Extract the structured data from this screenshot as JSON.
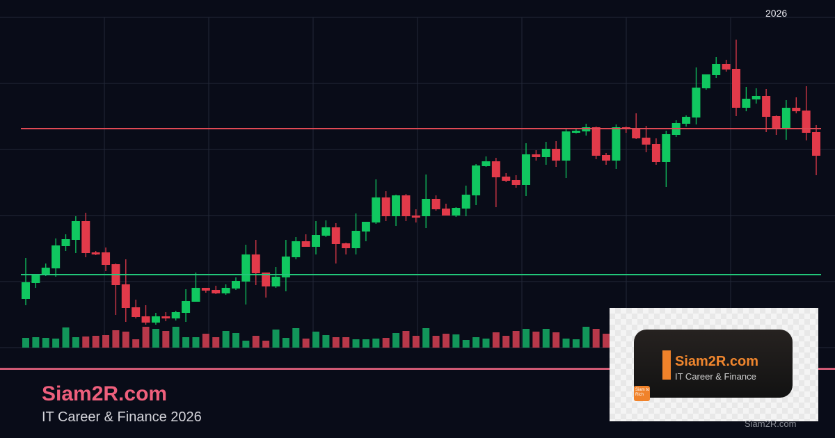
{
  "chart_data": {
    "type": "candlestick",
    "title": "",
    "annotation": "2026",
    "grid": true,
    "colors": {
      "background": "#090c18",
      "grid": "#232838",
      "up": "#10c760",
      "down": "#e23a4a",
      "volume_up": "#12965a",
      "volume_down": "#b8384a",
      "resistance": "#e04a55",
      "support": "#22c77a"
    },
    "levels": [
      {
        "kind": "resistance",
        "value": 345,
        "color": "#e04a55"
      },
      {
        "kind": "support",
        "value": 135,
        "color": "#22c77a"
      }
    ],
    "ohlc": [
      [
        100,
        159,
        91,
        124
      ],
      [
        123,
        135,
        116,
        135
      ],
      [
        135,
        151,
        133,
        145
      ],
      [
        144,
        187,
        132,
        177
      ],
      [
        176,
        193,
        169,
        186
      ],
      [
        185,
        219,
        166,
        212
      ],
      [
        212,
        224,
        160,
        166
      ],
      [
        167,
        169,
        163,
        164
      ],
      [
        167,
        174,
        140,
        149
      ],
      [
        150,
        151,
        77,
        120
      ],
      [
        121,
        157,
        67,
        87
      ],
      [
        88,
        99,
        72,
        74
      ],
      [
        75,
        91,
        63,
        66
      ],
      [
        66,
        80,
        63,
        75
      ],
      [
        75,
        81,
        68,
        72
      ],
      [
        72,
        83,
        69,
        81
      ],
      [
        80,
        114,
        67,
        97
      ],
      [
        96,
        138,
        96,
        116
      ],
      [
        116,
        116,
        109,
        112
      ],
      [
        113,
        119,
        107,
        108
      ],
      [
        108,
        121,
        106,
        116
      ],
      [
        115,
        131,
        113,
        126
      ],
      [
        125,
        178,
        92,
        164
      ],
      [
        164,
        185,
        120,
        137
      ],
      [
        138,
        138,
        102,
        118
      ],
      [
        118,
        146,
        116,
        132
      ],
      [
        131,
        185,
        111,
        161
      ],
      [
        160,
        189,
        157,
        183
      ],
      [
        183,
        193,
        175,
        175
      ],
      [
        175,
        212,
        164,
        192
      ],
      [
        191,
        213,
        189,
        203
      ],
      [
        203,
        209,
        151,
        179
      ],
      [
        180,
        181,
        164,
        173
      ],
      [
        173,
        223,
        164,
        198
      ],
      [
        197,
        211,
        183,
        211
      ],
      [
        210,
        272,
        208,
        246
      ],
      [
        246,
        255,
        212,
        219
      ],
      [
        219,
        250,
        205,
        249
      ],
      [
        249,
        251,
        212,
        219
      ],
      [
        220,
        229,
        210,
        217
      ],
      [
        219,
        279,
        202,
        244
      ],
      [
        244,
        249,
        227,
        229
      ],
      [
        230,
        237,
        220,
        220
      ],
      [
        220,
        232,
        218,
        231
      ],
      [
        230,
        263,
        219,
        250
      ],
      [
        249,
        294,
        235,
        292
      ],
      [
        291,
        305,
        290,
        298
      ],
      [
        298,
        303,
        232,
        275
      ],
      [
        276,
        281,
        268,
        270
      ],
      [
        271,
        278,
        260,
        264
      ],
      [
        264,
        324,
        248,
        308
      ],
      [
        308,
        314,
        299,
        304
      ],
      [
        304,
        326,
        293,
        316
      ],
      [
        316,
        327,
        290,
        299
      ],
      [
        299,
        344,
        274,
        341
      ],
      [
        339,
        344,
        338,
        342
      ],
      [
        341,
        352,
        335,
        347
      ],
      [
        347,
        348,
        301,
        306
      ],
      [
        307,
        310,
        293,
        299
      ],
      [
        299,
        351,
        287,
        347
      ],
      [
        347,
        348,
        339,
        344
      ],
      [
        346,
        367,
        330,
        331
      ],
      [
        332,
        349,
        311,
        322
      ],
      [
        323,
        331,
        293,
        297
      ],
      [
        297,
        342,
        261,
        337
      ],
      [
        336,
        357,
        333,
        353
      ],
      [
        352,
        364,
        348,
        362
      ],
      [
        361,
        433,
        351,
        404
      ],
      [
        403,
        423,
        401,
        423
      ],
      [
        422,
        448,
        418,
        438
      ],
      [
        438,
        444,
        427,
        430
      ],
      [
        431,
        473,
        363,
        375
      ],
      [
        375,
        405,
        370,
        388
      ],
      [
        387,
        403,
        381,
        392
      ],
      [
        392,
        402,
        340,
        362
      ],
      [
        363,
        364,
        336,
        345
      ],
      [
        346,
        386,
        329,
        375
      ],
      [
        375,
        390,
        367,
        370
      ],
      [
        371,
        406,
        328,
        339
      ],
      [
        340,
        350,
        278,
        306
      ]
    ],
    "volume": [
      14,
      15,
      14,
      13,
      29,
      15,
      16,
      17,
      18,
      25,
      23,
      12,
      30,
      27,
      24,
      30,
      15,
      15,
      20,
      15,
      24,
      21,
      10,
      17,
      10,
      26,
      14,
      28,
      13,
      23,
      18,
      15,
      15,
      12,
      12,
      13,
      14,
      21,
      24,
      17,
      28,
      17,
      20,
      19,
      11,
      15,
      13,
      22,
      17,
      24,
      27,
      23,
      27,
      22,
      13,
      12,
      30,
      27,
      20,
      null,
      null,
      null,
      null,
      null,
      null,
      null,
      null,
      null,
      null,
      null,
      null,
      null,
      null,
      null,
      null,
      null,
      null,
      null,
      null,
      null
    ]
  },
  "footer": {
    "brand": "Siam2R.com",
    "tagline": "IT Career & Finance 2026",
    "watermark": "Siam2R.com"
  },
  "logo": {
    "name": "Siam2R.com",
    "subtitle": "IT Career & Finance",
    "badge": "Siam to Rich"
  }
}
